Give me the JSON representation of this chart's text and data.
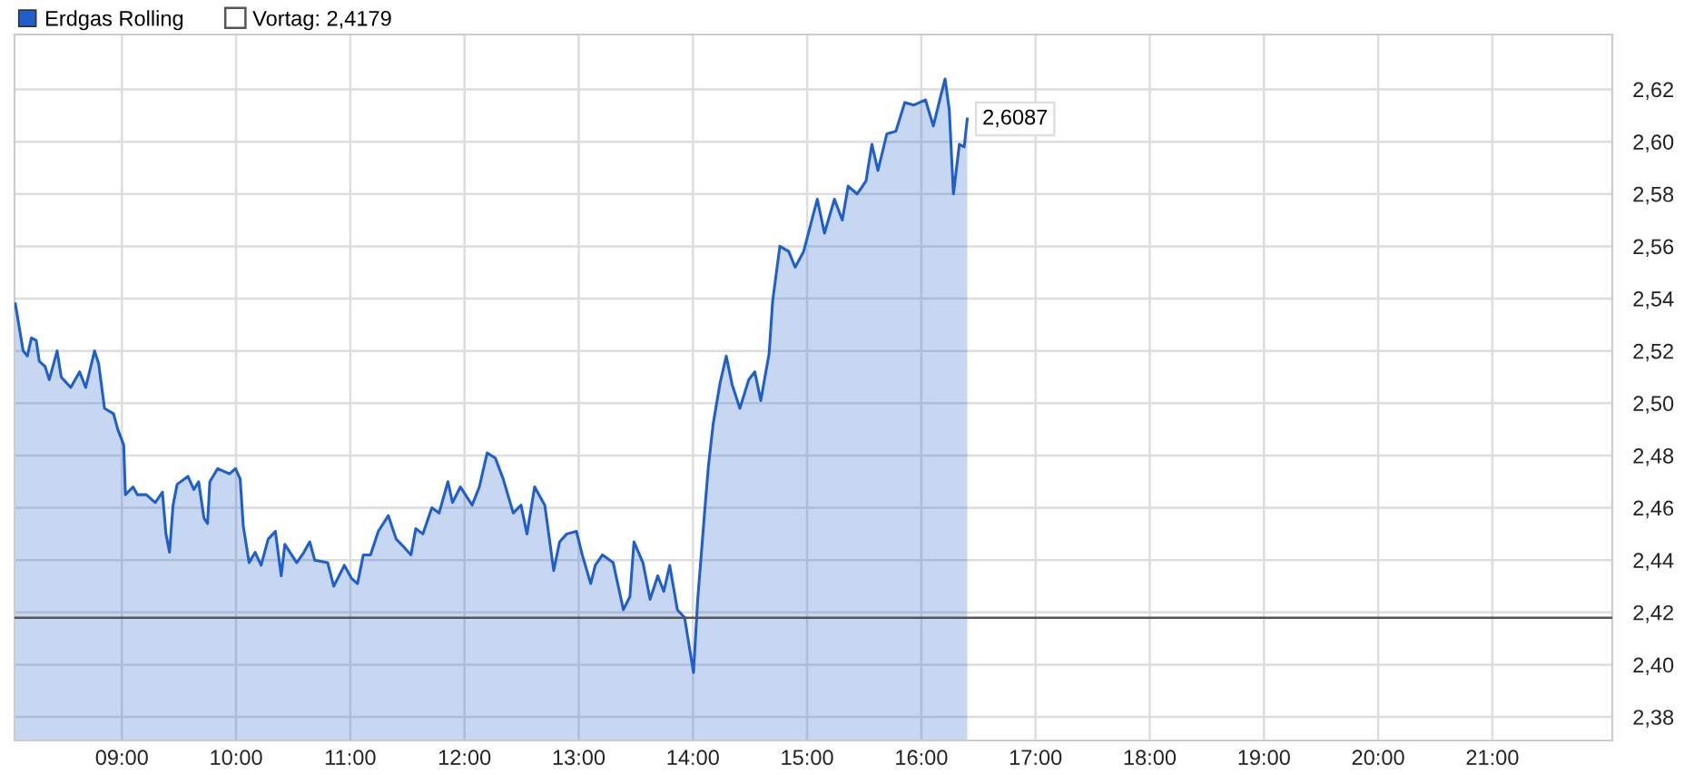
{
  "chart_data": {
    "type": "area",
    "x": [
      8.067,
      8.136,
      8.172,
      8.208,
      8.25,
      8.277,
      8.328,
      8.364,
      8.433,
      8.469,
      8.552,
      8.63,
      8.683,
      8.761,
      8.797,
      8.848,
      8.927,
      8.964,
      9.016,
      9.031,
      9.098,
      9.136,
      9.214,
      9.292,
      9.355,
      9.386,
      9.417,
      9.448,
      9.484,
      9.578,
      9.63,
      9.672,
      9.719,
      9.75,
      9.77,
      9.839,
      9.942,
      9.995,
      10.036,
      10.063,
      10.114,
      10.167,
      10.219,
      10.281,
      10.344,
      10.395,
      10.427,
      10.531,
      10.594,
      10.645,
      10.688,
      10.802,
      10.855,
      10.948,
      11.011,
      11.063,
      11.114,
      11.177,
      11.245,
      11.333,
      11.402,
      11.469,
      11.531,
      11.573,
      11.636,
      11.714,
      11.777,
      11.855,
      11.895,
      11.964,
      12.067,
      12.13,
      12.198,
      12.27,
      12.339,
      12.427,
      12.495,
      12.547,
      12.614,
      12.703,
      12.781,
      12.833,
      12.895,
      12.98,
      13.031,
      13.105,
      13.145,
      13.208,
      13.302,
      13.391,
      13.448,
      13.484,
      13.5625,
      13.625,
      13.692,
      13.745,
      13.797,
      13.864,
      13.927,
      14.005,
      14.042,
      14.109,
      14.136,
      14.177,
      14.239,
      14.292,
      14.344,
      14.411,
      14.489,
      14.542,
      14.594,
      14.667,
      14.698,
      14.761,
      14.839,
      14.895,
      14.969,
      15.047,
      15.089,
      15.152,
      15.239,
      15.308,
      15.359,
      15.4375,
      15.516,
      15.567,
      15.62,
      15.698,
      15.777,
      15.855,
      15.933,
      16.036,
      16.105,
      16.167,
      16.208,
      16.245,
      16.281,
      16.333,
      16.375,
      16.402
    ],
    "series": [
      {
        "name": "Erdgas Rolling",
        "color": "#1f5fcc",
        "values": [
          2.538,
          2.52,
          2.518,
          2.525,
          2.524,
          2.516,
          2.514,
          2.509,
          2.52,
          2.51,
          2.506,
          2.512,
          2.506,
          2.52,
          2.515,
          2.498,
          2.496,
          2.49,
          2.484,
          2.465,
          2.468,
          2.465,
          2.465,
          2.462,
          2.466,
          2.45,
          2.443,
          2.461,
          2.469,
          2.472,
          2.467,
          2.47,
          2.456,
          2.454,
          2.47,
          2.475,
          2.473,
          2.475,
          2.471,
          2.453,
          2.439,
          2.443,
          2.438,
          2.448,
          2.451,
          2.434,
          2.446,
          2.439,
          2.443,
          2.447,
          2.44,
          2.439,
          2.43,
          2.438,
          2.433,
          2.431,
          2.442,
          2.442,
          2.451,
          2.457,
          2.448,
          2.445,
          2.442,
          2.452,
          2.45,
          2.46,
          2.458,
          2.47,
          2.462,
          2.468,
          2.461,
          2.468,
          2.481,
          2.479,
          2.471,
          2.458,
          2.461,
          2.45,
          2.468,
          2.461,
          2.436,
          2.447,
          2.45,
          2.451,
          2.442,
          2.431,
          2.438,
          2.442,
          2.439,
          2.421,
          2.426,
          2.447,
          2.439,
          2.425,
          2.434,
          2.428,
          2.438,
          2.421,
          2.418,
          2.397,
          2.425,
          2.462,
          2.476,
          2.492,
          2.508,
          2.518,
          2.507,
          2.498,
          2.509,
          2.512,
          2.501,
          2.519,
          2.539,
          2.56,
          2.558,
          2.552,
          2.558,
          2.571,
          2.578,
          2.565,
          2.578,
          2.57,
          2.583,
          2.58,
          2.585,
          2.599,
          2.589,
          2.603,
          2.604,
          2.615,
          2.614,
          2.616,
          2.606,
          2.617,
          2.624,
          2.612,
          2.58,
          2.599,
          2.598,
          2.6087
        ]
      }
    ],
    "ref_lines": [
      {
        "axis": "y",
        "value": 2.4179,
        "label": "Vortag: 2,4179",
        "color": "#555555"
      }
    ],
    "annotations": [
      {
        "text": "2,6087",
        "x": 16.402,
        "y": 2.6087
      }
    ],
    "xlim": [
      8.06,
      22.05
    ],
    "ylim": [
      2.371,
      2.641
    ],
    "xticks": [
      {
        "value": 9,
        "label": "09:00"
      },
      {
        "value": 10,
        "label": "10:00"
      },
      {
        "value": 11,
        "label": "11:00"
      },
      {
        "value": 12,
        "label": "12:00"
      },
      {
        "value": 13,
        "label": "13:00"
      },
      {
        "value": 14,
        "label": "14:00"
      },
      {
        "value": 15,
        "label": "15:00"
      },
      {
        "value": 16,
        "label": "16:00"
      },
      {
        "value": 17,
        "label": "17:00"
      },
      {
        "value": 18,
        "label": "18:00"
      },
      {
        "value": 19,
        "label": "19:00"
      },
      {
        "value": 20,
        "label": "20:00"
      },
      {
        "value": 21,
        "label": "21:00"
      }
    ],
    "yticks": [
      {
        "value": 2.38,
        "label": "2,38"
      },
      {
        "value": 2.4,
        "label": "2,40"
      },
      {
        "value": 2.42,
        "label": "2,42"
      },
      {
        "value": 2.44,
        "label": "2,44"
      },
      {
        "value": 2.46,
        "label": "2,46"
      },
      {
        "value": 2.48,
        "label": "2,48"
      },
      {
        "value": 2.5,
        "label": "2,50"
      },
      {
        "value": 2.52,
        "label": "2,52"
      },
      {
        "value": 2.54,
        "label": "2,54"
      },
      {
        "value": 2.56,
        "label": "2,56"
      },
      {
        "value": 2.58,
        "label": "2,58"
      },
      {
        "value": 2.6,
        "label": "2,60"
      },
      {
        "value": 2.62,
        "label": "2,62"
      }
    ],
    "grid": true,
    "legend": "top left"
  }
}
